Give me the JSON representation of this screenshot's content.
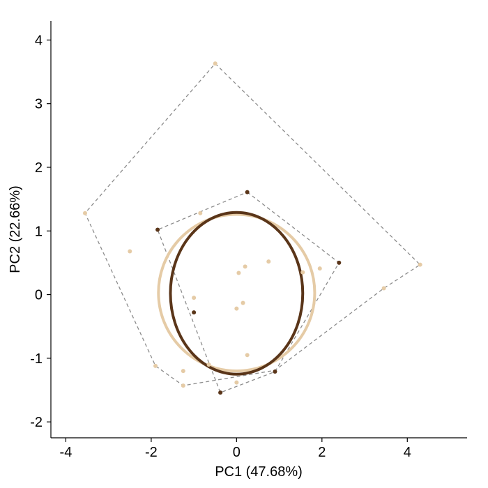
{
  "chart_data": {
    "type": "scatter",
    "xlabel": "PC1 (47.68%)",
    "ylabel": "PC2 (22.66%)",
    "xlim": [
      -4.35,
      5.4
    ],
    "ylim": [
      -2.25,
      4.3
    ],
    "xticks": [
      -4,
      -2,
      0,
      2,
      4
    ],
    "yticks": [
      -2,
      -1,
      0,
      1,
      2,
      3,
      4
    ],
    "xtick_labels": [
      "-4",
      "-2",
      "0",
      "2",
      "4"
    ],
    "ytick_labels": [
      "-2",
      "-1",
      "0",
      "1",
      "2",
      "3",
      "4"
    ],
    "grid": false,
    "colors": {
      "group_light": "#e5cba6",
      "group_dark": "#5a3519",
      "hull": "#8c8c8c",
      "axis": "#000000"
    },
    "series": [
      {
        "color_key": "group_light",
        "points": [
          [
            -0.5,
            3.63
          ],
          [
            -3.55,
            1.28
          ],
          [
            4.3,
            0.47
          ],
          [
            -2.5,
            0.68
          ],
          [
            -0.85,
            1.28
          ],
          [
            0.75,
            0.52
          ],
          [
            0.2,
            0.44
          ],
          [
            0.05,
            0.34
          ],
          [
            1.95,
            0.41
          ],
          [
            1.55,
            0.35
          ],
          [
            3.45,
            0.1
          ],
          [
            -1.0,
            -0.05
          ],
          [
            0.15,
            -0.13
          ],
          [
            0.0,
            -0.22
          ],
          [
            0.25,
            -0.95
          ],
          [
            -0.65,
            -1.1
          ],
          [
            -1.25,
            -1.2
          ],
          [
            -1.9,
            -1.12
          ],
          [
            -1.25,
            -1.43
          ],
          [
            0.0,
            -1.38
          ]
        ],
        "hull": [
          [
            -0.5,
            3.63
          ],
          [
            4.3,
            0.47
          ],
          [
            3.45,
            0.1
          ],
          [
            0.9,
            -1.19
          ],
          [
            -1.25,
            -1.43
          ],
          [
            -1.9,
            -1.12
          ],
          [
            -3.55,
            1.28
          ]
        ],
        "ellipse": {
          "cx": 0.0,
          "cy": 0.03,
          "rx": 1.83,
          "ry": 1.23
        }
      },
      {
        "color_key": "group_dark",
        "points": [
          [
            0.25,
            1.61
          ],
          [
            -1.85,
            1.02
          ],
          [
            2.4,
            0.5
          ],
          [
            -1.0,
            -0.28
          ],
          [
            0.9,
            -1.21
          ],
          [
            -0.38,
            -1.54
          ]
        ],
        "hull": [
          [
            0.25,
            1.61
          ],
          [
            2.4,
            0.5
          ],
          [
            0.9,
            -1.21
          ],
          [
            -0.38,
            -1.54
          ],
          [
            -1.85,
            1.02
          ]
        ],
        "ellipse": {
          "cx": 0.0,
          "cy": 0.02,
          "rx": 1.55,
          "ry": 1.27
        }
      }
    ]
  }
}
